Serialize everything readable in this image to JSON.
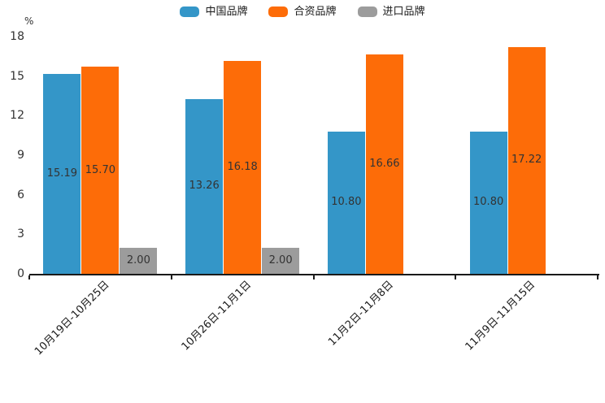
{
  "chart_data": {
    "type": "bar",
    "title": "",
    "unit_label": "%",
    "categories": [
      "10月19日-10月25日",
      "10月26日-11月1日",
      "11月2日-11月8日",
      "11月9日-11月15日"
    ],
    "series": [
      {
        "name": "中国品牌",
        "color": "#3496c8",
        "values": [
          15.19,
          13.26,
          10.8,
          10.8
        ]
      },
      {
        "name": "合资品牌",
        "color": "#fd6c08",
        "values": [
          15.7,
          16.18,
          16.66,
          17.22
        ]
      },
      {
        "name": "进口品牌",
        "color": "#9c9c9c",
        "values": [
          2.0,
          2.0,
          null,
          null
        ]
      }
    ],
    "ylim": [
      0,
      18
    ],
    "yticks": [
      0,
      3,
      6,
      9,
      12,
      15,
      18
    ],
    "grid": false,
    "legend_position": "top",
    "value_label_decimals": 2,
    "value_label_color": "#333333",
    "axis_color": "#1a1a1a"
  }
}
